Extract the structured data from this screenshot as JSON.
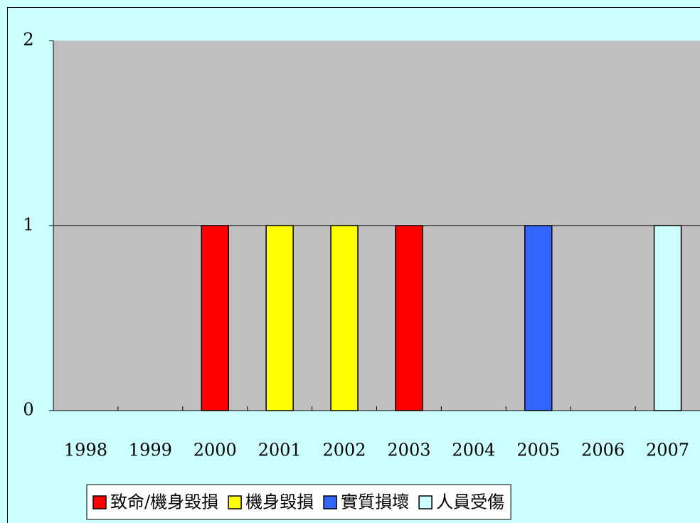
{
  "chart_data": {
    "type": "bar",
    "stacked": true,
    "categories": [
      "1998",
      "1999",
      "2000",
      "2001",
      "2002",
      "2003",
      "2004",
      "2005",
      "2006",
      "2007"
    ],
    "series": [
      {
        "name": "致命/機身毀損",
        "color": "#ff0000",
        "values": [
          0,
          0,
          1,
          0,
          0,
          1,
          0,
          0,
          0,
          0
        ]
      },
      {
        "name": "機身毀損",
        "color": "#ffff00",
        "values": [
          0,
          0,
          0,
          1,
          1,
          0,
          0,
          0,
          0,
          0
        ]
      },
      {
        "name": "實質損壞",
        "color": "#3366ff",
        "values": [
          0,
          0,
          0,
          0,
          0,
          0,
          0,
          1,
          0,
          0
        ]
      },
      {
        "name": "人員受傷",
        "color": "#ccffff",
        "values": [
          0,
          0,
          0,
          0,
          0,
          0,
          0,
          0,
          0,
          1
        ]
      }
    ],
    "ylim": [
      0,
      2
    ],
    "yticks": [
      0,
      1,
      2
    ],
    "grid": true,
    "legend": "bottom"
  }
}
